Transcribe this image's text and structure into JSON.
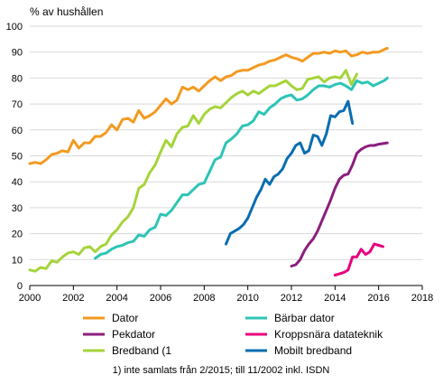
{
  "chart_data": {
    "type": "line",
    "ylabel": "% av hushållen",
    "xlim": [
      2000,
      2018
    ],
    "ylim": [
      0,
      100
    ],
    "x_ticks": [
      2000,
      2002,
      2004,
      2006,
      2008,
      2010,
      2012,
      2014,
      2016,
      2018
    ],
    "y_ticks": [
      0,
      10,
      20,
      30,
      40,
      50,
      60,
      70,
      80,
      90,
      100
    ],
    "grid": "horizontal",
    "legend_position": "bottom",
    "footnote": "1) inte samlats från 2/2015; till 11/2002 inkl. ISDN",
    "series": [
      {
        "name": "Dator",
        "color": "#F39A21",
        "points": [
          [
            2000.0,
            47
          ],
          [
            2000.25,
            47.5
          ],
          [
            2000.5,
            47
          ],
          [
            2000.75,
            48.5
          ],
          [
            2001.0,
            50.5
          ],
          [
            2001.25,
            51
          ],
          [
            2001.5,
            52
          ],
          [
            2001.75,
            51.5
          ],
          [
            2002.0,
            56
          ],
          [
            2002.25,
            53
          ],
          [
            2002.5,
            55
          ],
          [
            2002.75,
            55
          ],
          [
            2003.0,
            57.5
          ],
          [
            2003.25,
            57.5
          ],
          [
            2003.5,
            59
          ],
          [
            2003.75,
            62
          ],
          [
            2004.0,
            60
          ],
          [
            2004.25,
            64
          ],
          [
            2004.5,
            64.5
          ],
          [
            2004.75,
            63
          ],
          [
            2005.0,
            67.5
          ],
          [
            2005.25,
            64.5
          ],
          [
            2005.5,
            65.5
          ],
          [
            2005.75,
            67
          ],
          [
            2006.0,
            69.5
          ],
          [
            2006.25,
            72
          ],
          [
            2006.5,
            70
          ],
          [
            2006.75,
            71.5
          ],
          [
            2007.0,
            76.5
          ],
          [
            2007.25,
            75.5
          ],
          [
            2007.5,
            76.5
          ],
          [
            2007.75,
            75
          ],
          [
            2008.0,
            77
          ],
          [
            2008.25,
            79
          ],
          [
            2008.5,
            80.5
          ],
          [
            2008.75,
            79
          ],
          [
            2009.0,
            80.5
          ],
          [
            2009.25,
            81
          ],
          [
            2009.5,
            82.5
          ],
          [
            2009.75,
            83
          ],
          [
            2010.0,
            83
          ],
          [
            2010.25,
            84
          ],
          [
            2010.5,
            85
          ],
          [
            2010.75,
            85.5
          ],
          [
            2011.0,
            86.5
          ],
          [
            2011.25,
            87
          ],
          [
            2011.5,
            88
          ],
          [
            2011.75,
            89
          ],
          [
            2012.0,
            88
          ],
          [
            2012.25,
            87.5
          ],
          [
            2012.5,
            86.5
          ],
          [
            2012.75,
            88
          ],
          [
            2013.0,
            89.5
          ],
          [
            2013.25,
            89.5
          ],
          [
            2013.5,
            90
          ],
          [
            2013.75,
            89.5
          ],
          [
            2014.0,
            90.5
          ],
          [
            2014.25,
            90
          ],
          [
            2014.5,
            90.5
          ],
          [
            2014.75,
            88.5
          ],
          [
            2015.0,
            89
          ],
          [
            2015.25,
            90
          ],
          [
            2015.5,
            89.5
          ],
          [
            2015.75,
            90
          ],
          [
            2016.0,
            90
          ],
          [
            2016.25,
            91
          ],
          [
            2016.4,
            91.5
          ]
        ]
      },
      {
        "name": "Bärbar dator",
        "color": "#2EC4B6",
        "points": [
          [
            2003.0,
            10.5
          ],
          [
            2003.25,
            12
          ],
          [
            2003.5,
            12.5
          ],
          [
            2003.75,
            14
          ],
          [
            2004.0,
            15
          ],
          [
            2004.25,
            15.5
          ],
          [
            2004.5,
            16.5
          ],
          [
            2004.75,
            17
          ],
          [
            2005.0,
            19.5
          ],
          [
            2005.25,
            19
          ],
          [
            2005.5,
            21.5
          ],
          [
            2005.75,
            22.5
          ],
          [
            2006.0,
            27.5
          ],
          [
            2006.25,
            27
          ],
          [
            2006.5,
            29
          ],
          [
            2006.75,
            32
          ],
          [
            2007.0,
            35
          ],
          [
            2007.25,
            35
          ],
          [
            2007.5,
            37
          ],
          [
            2007.75,
            39
          ],
          [
            2008.0,
            39.5
          ],
          [
            2008.25,
            44
          ],
          [
            2008.5,
            48.5
          ],
          [
            2008.75,
            49.5
          ],
          [
            2009.0,
            55
          ],
          [
            2009.25,
            56.5
          ],
          [
            2009.5,
            58.5
          ],
          [
            2009.75,
            61.5
          ],
          [
            2010.0,
            62
          ],
          [
            2010.25,
            63.5
          ],
          [
            2010.5,
            67
          ],
          [
            2010.75,
            66
          ],
          [
            2011.0,
            68.5
          ],
          [
            2011.25,
            70
          ],
          [
            2011.5,
            72
          ],
          [
            2011.75,
            73
          ],
          [
            2012.0,
            73.5
          ],
          [
            2012.25,
            71.5
          ],
          [
            2012.5,
            72
          ],
          [
            2012.75,
            73.5
          ],
          [
            2013.0,
            75.5
          ],
          [
            2013.25,
            77
          ],
          [
            2013.5,
            77
          ],
          [
            2013.75,
            76.5
          ],
          [
            2014.0,
            77.5
          ],
          [
            2014.25,
            78
          ],
          [
            2014.5,
            77
          ],
          [
            2014.75,
            75.5
          ],
          [
            2015.0,
            79
          ],
          [
            2015.25,
            78
          ],
          [
            2015.5,
            78.5
          ],
          [
            2015.75,
            77
          ],
          [
            2016.0,
            78
          ],
          [
            2016.25,
            79
          ],
          [
            2016.4,
            80
          ]
        ]
      },
      {
        "name": "Pekdator",
        "color": "#8B1E7E",
        "points": [
          [
            2012.0,
            7.5
          ],
          [
            2012.2,
            8
          ],
          [
            2012.4,
            10
          ],
          [
            2012.6,
            13.5
          ],
          [
            2012.8,
            16
          ],
          [
            2013.0,
            18
          ],
          [
            2013.2,
            21
          ],
          [
            2013.4,
            25
          ],
          [
            2013.6,
            29
          ],
          [
            2013.8,
            33
          ],
          [
            2014.0,
            37.5
          ],
          [
            2014.2,
            41
          ],
          [
            2014.4,
            42.5
          ],
          [
            2014.6,
            43
          ],
          [
            2014.8,
            46.5
          ],
          [
            2015.0,
            51
          ],
          [
            2015.2,
            52.5
          ],
          [
            2015.4,
            53.5
          ],
          [
            2015.6,
            54
          ],
          [
            2015.8,
            54
          ],
          [
            2016.0,
            54.5
          ],
          [
            2016.4,
            55
          ]
        ]
      },
      {
        "name": "Kroppsnära datateknik",
        "color": "#E6007E",
        "points": [
          [
            2014.0,
            4
          ],
          [
            2014.2,
            4.5
          ],
          [
            2014.4,
            5
          ],
          [
            2014.6,
            6
          ],
          [
            2014.8,
            11
          ],
          [
            2015.0,
            11
          ],
          [
            2015.2,
            14
          ],
          [
            2015.4,
            12
          ],
          [
            2015.6,
            13
          ],
          [
            2015.8,
            16
          ],
          [
            2016.0,
            15.5
          ],
          [
            2016.2,
            15
          ]
        ]
      },
      {
        "name": "Bredband (1",
        "color": "#A5D43B",
        "points": [
          [
            2000.0,
            6
          ],
          [
            2000.25,
            5.5
          ],
          [
            2000.5,
            7
          ],
          [
            2000.75,
            6.5
          ],
          [
            2001.0,
            9.5
          ],
          [
            2001.25,
            9
          ],
          [
            2001.5,
            11
          ],
          [
            2001.75,
            12.5
          ],
          [
            2002.0,
            13
          ],
          [
            2002.25,
            12
          ],
          [
            2002.5,
            14.5
          ],
          [
            2002.75,
            15
          ],
          [
            2003.0,
            13
          ],
          [
            2003.25,
            15
          ],
          [
            2003.5,
            16
          ],
          [
            2003.75,
            19.5
          ],
          [
            2004.0,
            21.5
          ],
          [
            2004.25,
            24.5
          ],
          [
            2004.5,
            26.5
          ],
          [
            2004.75,
            30
          ],
          [
            2005.0,
            37.5
          ],
          [
            2005.25,
            39
          ],
          [
            2005.5,
            43.5
          ],
          [
            2005.75,
            46.5
          ],
          [
            2006.0,
            51.5
          ],
          [
            2006.25,
            56
          ],
          [
            2006.5,
            53.5
          ],
          [
            2006.75,
            58.5
          ],
          [
            2007.0,
            61
          ],
          [
            2007.25,
            61.5
          ],
          [
            2007.5,
            65.5
          ],
          [
            2007.75,
            62.5
          ],
          [
            2008.0,
            66
          ],
          [
            2008.25,
            68
          ],
          [
            2008.5,
            69
          ],
          [
            2008.75,
            68.5
          ],
          [
            2009.0,
            70.5
          ],
          [
            2009.25,
            72.5
          ],
          [
            2009.5,
            74
          ],
          [
            2009.75,
            75
          ],
          [
            2010.0,
            73.5
          ],
          [
            2010.25,
            75
          ],
          [
            2010.5,
            74
          ],
          [
            2010.75,
            75.5
          ],
          [
            2011.0,
            77
          ],
          [
            2011.25,
            77
          ],
          [
            2011.5,
            78
          ],
          [
            2011.75,
            79
          ],
          [
            2012.0,
            77
          ],
          [
            2012.25,
            75.5
          ],
          [
            2012.5,
            76
          ],
          [
            2012.75,
            79.5
          ],
          [
            2013.0,
            80
          ],
          [
            2013.25,
            80.5
          ],
          [
            2013.5,
            78.5
          ],
          [
            2013.75,
            80
          ],
          [
            2014.0,
            80.5
          ],
          [
            2014.25,
            80
          ],
          [
            2014.5,
            83
          ],
          [
            2014.75,
            77.5
          ],
          [
            2015.0,
            81.5
          ]
        ]
      },
      {
        "name": "Mobilt bredband",
        "color": "#0A6DB0",
        "points": [
          [
            2009.0,
            16
          ],
          [
            2009.2,
            20
          ],
          [
            2009.4,
            21
          ],
          [
            2009.6,
            22
          ],
          [
            2009.8,
            23.5
          ],
          [
            2010.0,
            26
          ],
          [
            2010.2,
            30
          ],
          [
            2010.4,
            34
          ],
          [
            2010.6,
            37
          ],
          [
            2010.8,
            41
          ],
          [
            2011.0,
            39
          ],
          [
            2011.2,
            42
          ],
          [
            2011.4,
            43
          ],
          [
            2011.6,
            45
          ],
          [
            2011.8,
            49
          ],
          [
            2012.0,
            51
          ],
          [
            2012.2,
            54
          ],
          [
            2012.4,
            55
          ],
          [
            2012.6,
            51
          ],
          [
            2012.8,
            52
          ],
          [
            2013.0,
            58
          ],
          [
            2013.2,
            57.5
          ],
          [
            2013.4,
            54
          ],
          [
            2013.6,
            58.5
          ],
          [
            2013.8,
            65.5
          ],
          [
            2014.0,
            65
          ],
          [
            2014.2,
            67
          ],
          [
            2014.4,
            67.5
          ],
          [
            2014.6,
            71
          ],
          [
            2014.8,
            62.5
          ]
        ]
      }
    ]
  }
}
